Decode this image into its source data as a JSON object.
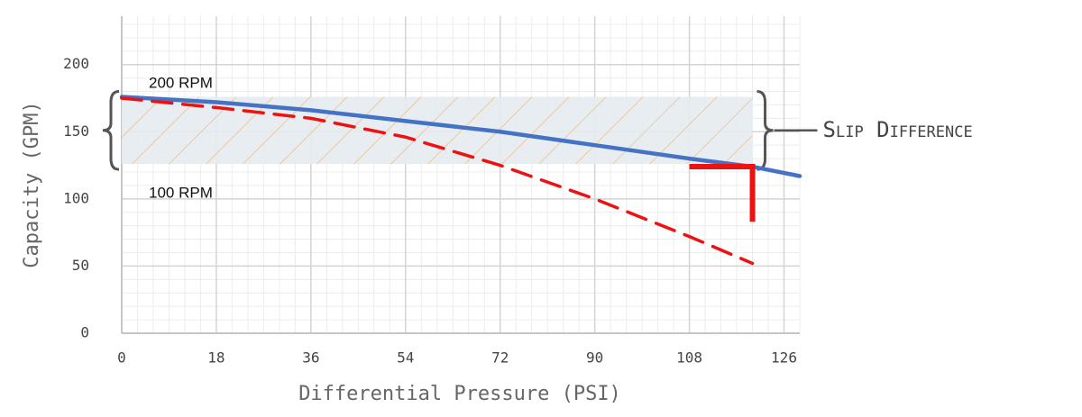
{
  "chart_data": {
    "type": "line",
    "xlabel": "Differential Pressure (PSI)",
    "ylabel": "Capacity (GPM)",
    "x": [
      0,
      18,
      36,
      54,
      72,
      90,
      108,
      120,
      129
    ],
    "series": [
      {
        "name": "200 RPM",
        "color": "#4472c4",
        "dashed": false,
        "values": [
          176,
          172,
          166,
          158,
          150,
          140,
          130,
          124,
          117
        ]
      },
      {
        "name": "100 RPM",
        "color": "#ee1111",
        "dashed": true,
        "values": [
          175,
          168,
          160,
          146,
          125,
          100,
          72,
          52,
          null
        ]
      }
    ],
    "xlim": [
      0,
      129
    ],
    "xticks": [
      0,
      18,
      36,
      54,
      72,
      90,
      108,
      126
    ],
    "ylim": [
      0,
      236
    ],
    "yticks": [
      0,
      50,
      100,
      150,
      200
    ],
    "grid": true,
    "shaded_region": {
      "xlim": [
        0,
        120
      ],
      "ylim": [
        126,
        176
      ],
      "color": "#e6ebef",
      "hatch_color": "#f4b36b"
    },
    "marker": {
      "x": [
        108,
        120
      ],
      "y": [
        124,
        83
      ],
      "color": "#ee1111"
    },
    "annotation": "Slip Difference"
  }
}
